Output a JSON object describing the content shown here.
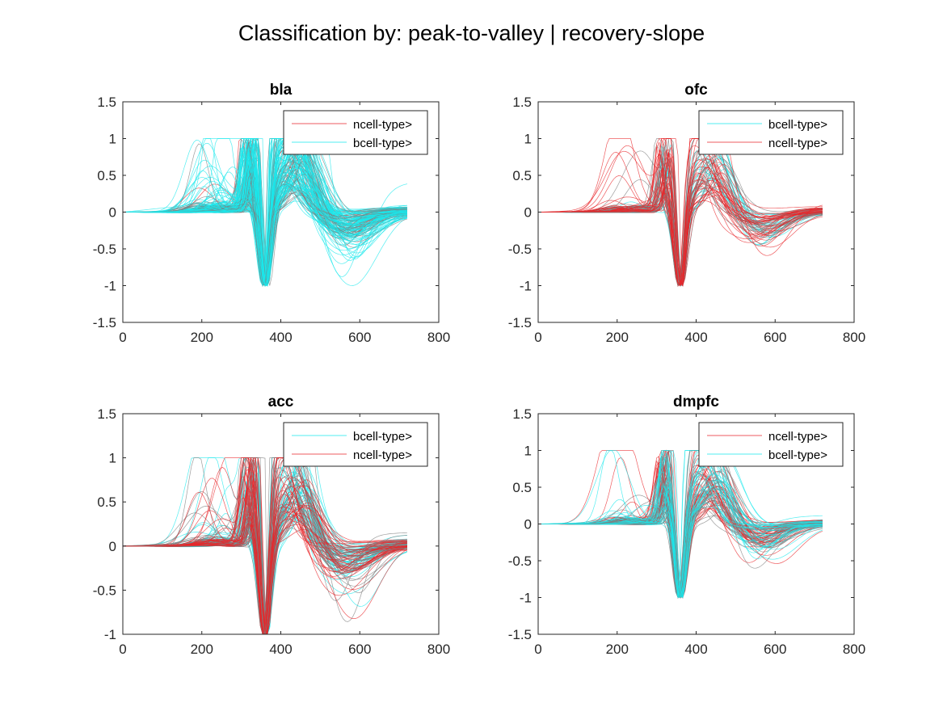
{
  "figure": {
    "suptitle": "Classification by: peak-to-valley | recovery-slope"
  },
  "colors": {
    "ncell": "#e8252a",
    "bcell": "#19e8ec",
    "gray": "#7d7d7d"
  },
  "chart_data": [
    {
      "type": "line",
      "title": "bla",
      "xlim": [
        0,
        800
      ],
      "ylim": [
        -1.5,
        1.5
      ],
      "xticks": [
        "0",
        "200",
        "400",
        "600",
        "800"
      ],
      "yticks": [
        "1.5",
        "1",
        "0.5",
        "0",
        "-0.5",
        "-1",
        "-1.5"
      ],
      "legend_position": "top-right",
      "legend": [
        "ncell-type>",
        "bcell-type>"
      ],
      "series": [
        {
          "name": "ncell-type>",
          "count": 12,
          "values_note": "waveforms peak-normalized, trough -1 at x≈360"
        },
        {
          "name": "bcell-type>",
          "count": 140
        }
      ]
    },
    {
      "type": "line",
      "title": "ofc",
      "xlim": [
        0,
        800
      ],
      "ylim": [
        -1.5,
        1.5
      ],
      "xticks": [
        "0",
        "200",
        "400",
        "600",
        "800"
      ],
      "yticks": [
        "1.5",
        "1",
        "0.5",
        "0",
        "-0.5",
        "-1",
        "-1.5"
      ],
      "legend_position": "top-right",
      "legend": [
        "bcell-type>",
        "ncell-type>"
      ],
      "series": [
        {
          "name": "bcell-type>",
          "count": 25
        },
        {
          "name": "ncell-type>",
          "count": 45
        }
      ]
    },
    {
      "type": "line",
      "title": "acc",
      "xlim": [
        0,
        800
      ],
      "ylim": [
        -1,
        1.5
      ],
      "xticks": [
        "0",
        "200",
        "400",
        "600",
        "800"
      ],
      "yticks": [
        "1.5",
        "1",
        "0.5",
        "0",
        "-0.5",
        "-1"
      ],
      "legend_position": "top-right",
      "legend": [
        "bcell-type>",
        "ncell-type>"
      ],
      "series": [
        {
          "name": "bcell-type>",
          "count": 60
        },
        {
          "name": "ncell-type>",
          "count": 50
        }
      ]
    },
    {
      "type": "line",
      "title": "dmpfc",
      "xlim": [
        0,
        800
      ],
      "ylim": [
        -1.5,
        1.5
      ],
      "xticks": [
        "0",
        "200",
        "400",
        "600",
        "800"
      ],
      "yticks": [
        "1.5",
        "1",
        "0.5",
        "0",
        "-0.5",
        "-1",
        "-1.5"
      ],
      "legend_position": "top-right",
      "legend": [
        "ncell-type>",
        "bcell-type>"
      ],
      "series": [
        {
          "name": "ncell-type>",
          "count": 55
        },
        {
          "name": "bcell-type>",
          "count": 40
        }
      ]
    }
  ]
}
